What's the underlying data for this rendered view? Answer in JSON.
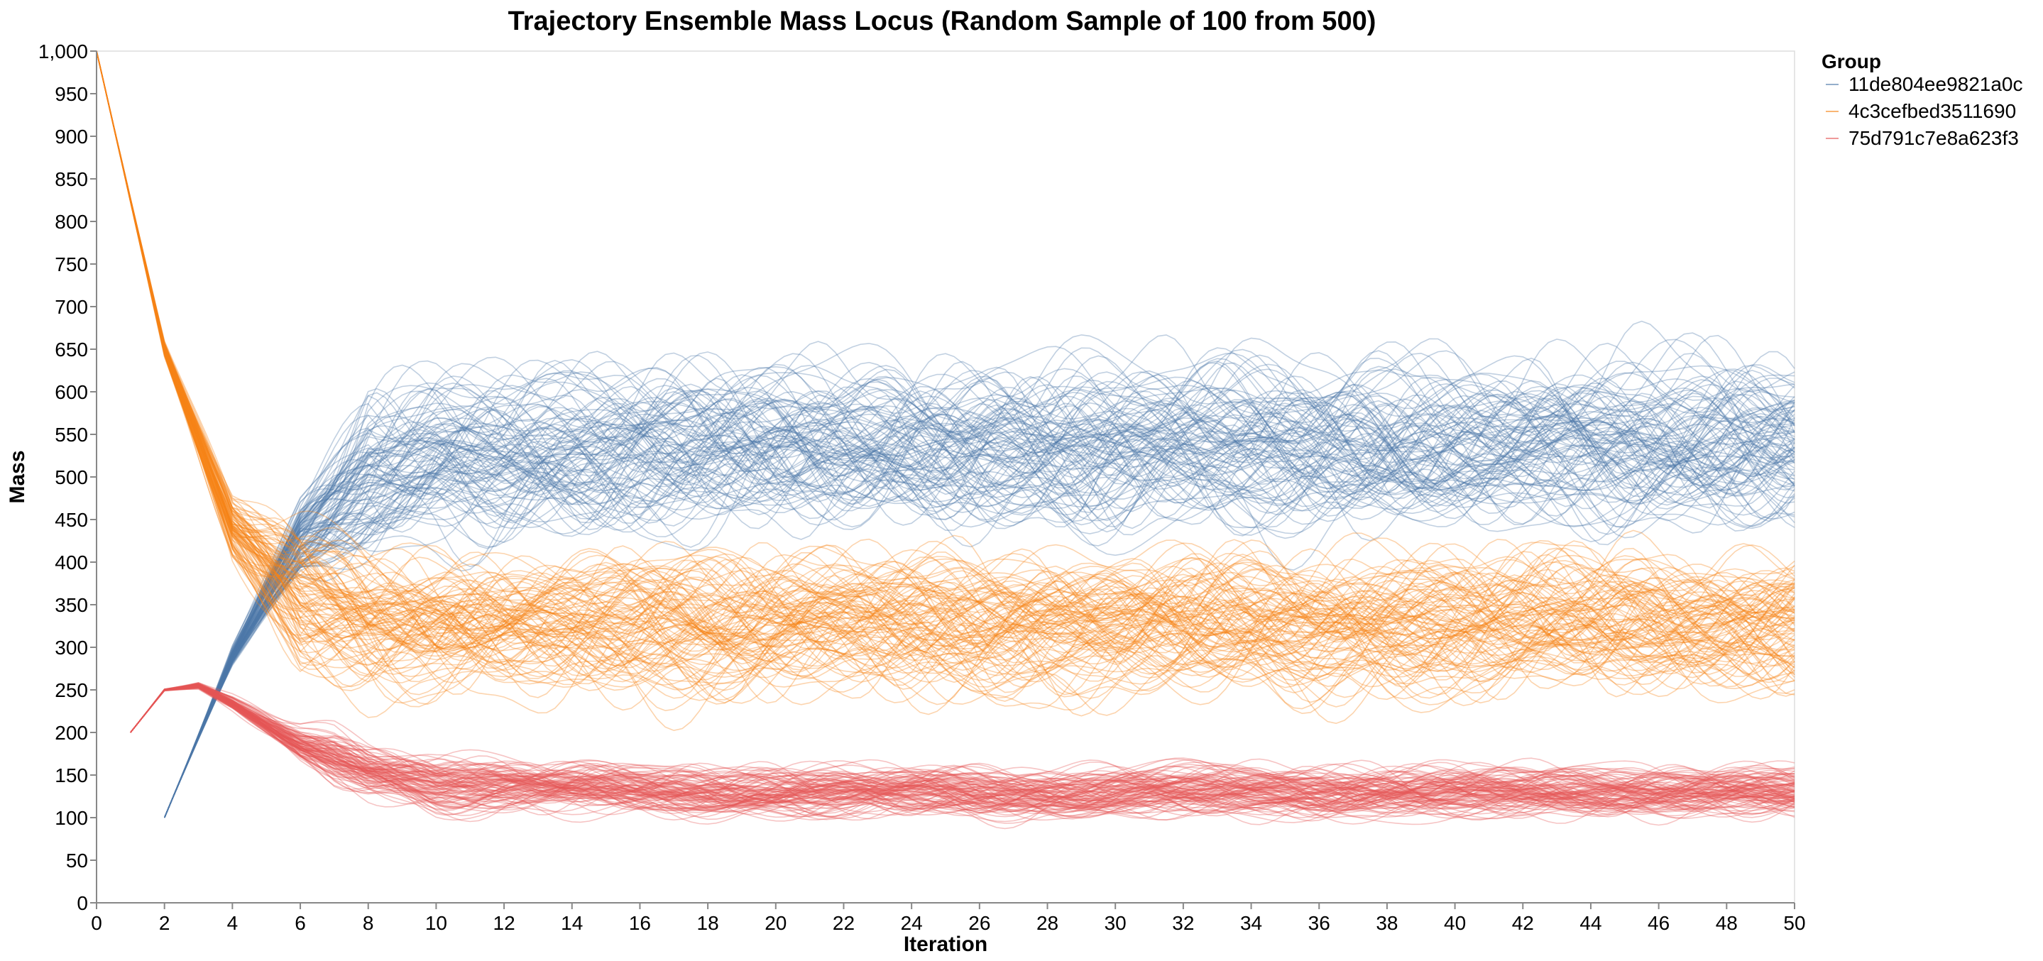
{
  "chart_data": {
    "type": "line",
    "title": "Trajectory Ensemble Mass Locus (Random Sample of 100 from 500)",
    "xlabel": "Iteration",
    "ylabel": "Mass",
    "xlim": [
      0,
      50
    ],
    "ylim": [
      0,
      1000
    ],
    "x_ticks": [
      "0",
      "2",
      "4",
      "6",
      "8",
      "10",
      "12",
      "14",
      "16",
      "18",
      "20",
      "22",
      "24",
      "26",
      "28",
      "30",
      "32",
      "34",
      "36",
      "38",
      "40",
      "42",
      "44",
      "46",
      "48",
      "50"
    ],
    "y_ticks": [
      "0",
      "50",
      "100",
      "150",
      "200",
      "250",
      "300",
      "350",
      "400",
      "450",
      "500",
      "550",
      "600",
      "650",
      "700",
      "750",
      "800",
      "850",
      "900",
      "950",
      "1,000"
    ],
    "grid": false,
    "legend": {
      "title": "Group",
      "position": "top-right"
    },
    "trajectories_per_series": 100,
    "series": [
      {
        "name": "11de804ee9821a0c",
        "color": "#4c78a8",
        "start_iteration": 2,
        "start_value": 100,
        "steady_mean": 540,
        "steady_min": 420,
        "steady_max": 640,
        "representative": [
          [
            2,
            100
          ],
          [
            4,
            290
          ],
          [
            6,
            430
          ],
          [
            8,
            500
          ],
          [
            10,
            525
          ],
          [
            14,
            535
          ],
          [
            20,
            540
          ],
          [
            30,
            540
          ],
          [
            40,
            540
          ],
          [
            50,
            545
          ]
        ]
      },
      {
        "name": "4c3cefbed3511690",
        "color": "#f58518",
        "start_iteration": 0,
        "start_value": 1000,
        "steady_mean": 330,
        "steady_min": 250,
        "steady_max": 440,
        "representative": [
          [
            0,
            1000
          ],
          [
            2,
            650
          ],
          [
            4,
            440
          ],
          [
            6,
            360
          ],
          [
            8,
            335
          ],
          [
            10,
            330
          ],
          [
            20,
            330
          ],
          [
            30,
            330
          ],
          [
            40,
            330
          ],
          [
            50,
            330
          ]
        ]
      },
      {
        "name": "75d791c7e8a623f3",
        "color": "#e45756",
        "start_iteration": 1,
        "start_value": 200,
        "steady_mean": 130,
        "steady_min": 105,
        "steady_max": 175,
        "representative": [
          [
            1,
            200
          ],
          [
            2,
            250
          ],
          [
            3,
            255
          ],
          [
            4,
            235
          ],
          [
            6,
            185
          ],
          [
            8,
            155
          ],
          [
            10,
            138
          ],
          [
            20,
            130
          ],
          [
            30,
            130
          ],
          [
            40,
            130
          ],
          [
            50,
            130
          ]
        ]
      }
    ]
  }
}
